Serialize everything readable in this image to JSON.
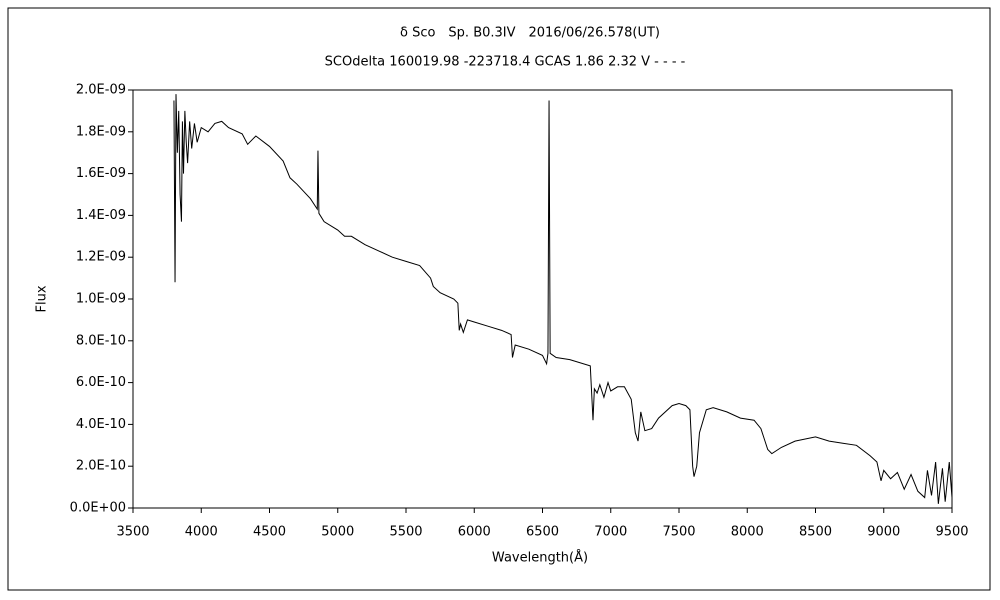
{
  "chart_data": {
    "type": "line",
    "title": "δ Sco　Sp. B0.3IV　2016/06/26.578(UT)",
    "subtitle": "SCOdelta 160019.98 -223718.4 GCAS 1.86 2.32 V - - - -",
    "x_label": "Wavelength(Å)",
    "y_label": "Flux",
    "color": "#000000",
    "grid": false,
    "xlim": [
      3500,
      9500
    ],
    "xticks": [
      3500,
      4000,
      4500,
      5000,
      5500,
      6000,
      6500,
      7000,
      7500,
      8000,
      8500,
      9000,
      9500
    ],
    "ylim": [
      0,
      2e-09
    ],
    "yticks": [
      {
        "value": 0,
        "label": "0.0E+00"
      },
      {
        "value": 2e-10,
        "label": "2.0E-10"
      },
      {
        "value": 4e-10,
        "label": "4.0E-10"
      },
      {
        "value": 6e-10,
        "label": "6.0E-10"
      },
      {
        "value": 8e-10,
        "label": "8.0E-10"
      },
      {
        "value": 1e-09,
        "label": "1.0E-09"
      },
      {
        "value": 1.2e-09,
        "label": "1.2E-09"
      },
      {
        "value": 1.4e-09,
        "label": "1.4E-09"
      },
      {
        "value": 1.6e-09,
        "label": "1.6E-09"
      },
      {
        "value": 1.8e-09,
        "label": "1.8E-09"
      },
      {
        "value": 2e-09,
        "label": "2.0E-09"
      }
    ],
    "x": [
      3800,
      3808,
      3815,
      3825,
      3835,
      3845,
      3855,
      3862,
      3870,
      3880,
      3890,
      3900,
      3915,
      3930,
      3950,
      3970,
      4000,
      4050,
      4100,
      4150,
      4200,
      4300,
      4340,
      4400,
      4500,
      4600,
      4650,
      4700,
      4800,
      4850,
      4855,
      4862,
      4900,
      5000,
      5050,
      5100,
      5200,
      5300,
      5400,
      5500,
      5600,
      5680,
      5700,
      5750,
      5850,
      5880,
      5890,
      5900,
      5920,
      5950,
      6000,
      6100,
      6200,
      6270,
      6280,
      6300,
      6400,
      6500,
      6530,
      6540,
      6548,
      6556,
      6600,
      6700,
      6850,
      6870,
      6880,
      6900,
      6920,
      6950,
      6980,
      7000,
      7050,
      7100,
      7150,
      7180,
      7200,
      7220,
      7250,
      7300,
      7350,
      7450,
      7500,
      7550,
      7580,
      7600,
      7610,
      7630,
      7650,
      7700,
      7750,
      7850,
      7950,
      8050,
      8100,
      8150,
      8180,
      8250,
      8350,
      8500,
      8600,
      8700,
      8800,
      8900,
      8950,
      8980,
      9000,
      9050,
      9100,
      9150,
      9200,
      9250,
      9300,
      9320,
      9350,
      9380,
      9400,
      9430,
      9450,
      9480,
      9500
    ],
    "values": [
      1.95e-09,
      1.08e-09,
      1.98e-09,
      1.7e-09,
      1.9e-09,
      1.5e-09,
      1.37e-09,
      1.85e-09,
      1.6e-09,
      1.9e-09,
      1.75e-09,
      1.65e-09,
      1.85e-09,
      1.72e-09,
      1.84e-09,
      1.75e-09,
      1.82e-09,
      1.8e-09,
      1.84e-09,
      1.85e-09,
      1.82e-09,
      1.79e-09,
      1.74e-09,
      1.78e-09,
      1.73e-09,
      1.66e-09,
      1.58e-09,
      1.55e-09,
      1.48e-09,
      1.43e-09,
      1.71e-09,
      1.41e-09,
      1.37e-09,
      1.33e-09,
      1.3e-09,
      1.3e-09,
      1.26e-09,
      1.23e-09,
      1.2e-09,
      1.18e-09,
      1.16e-09,
      1.1e-09,
      1.06e-09,
      1.03e-09,
      1e-09,
      9.8e-10,
      8.5e-10,
      8.8e-10,
      8.4e-10,
      9e-10,
      8.9e-10,
      8.7e-10,
      8.5e-10,
      8.3e-10,
      7.2e-10,
      7.8e-10,
      7.6e-10,
      7.3e-10,
      6.9e-10,
      7.4e-10,
      1.95e-09,
      7.4e-10,
      7.2e-10,
      7.1e-10,
      6.8e-10,
      4.2e-10,
      5.7e-10,
      5.5e-10,
      5.9e-10,
      5.3e-10,
      6e-10,
      5.6e-10,
      5.8e-10,
      5.8e-10,
      5.2e-10,
      3.6e-10,
      3.2e-10,
      4.6e-10,
      3.7e-10,
      3.8e-10,
      4.3e-10,
      4.9e-10,
      5e-10,
      4.9e-10,
      4.7e-10,
      2e-10,
      1.5e-10,
      2e-10,
      3.6e-10,
      4.7e-10,
      4.8e-10,
      4.6e-10,
      4.3e-10,
      4.2e-10,
      3.8e-10,
      2.8e-10,
      2.6e-10,
      2.9e-10,
      3.2e-10,
      3.4e-10,
      3.2e-10,
      3.1e-10,
      3e-10,
      2.5e-10,
      2.2e-10,
      1.3e-10,
      1.8e-10,
      1.4e-10,
      1.7e-10,
      9e-11,
      1.6e-10,
      8e-11,
      5e-11,
      1.8e-10,
      6e-11,
      2.2e-10,
      2e-11,
      1.9e-10,
      3e-11,
      2.2e-10,
      5e-11
    ]
  }
}
